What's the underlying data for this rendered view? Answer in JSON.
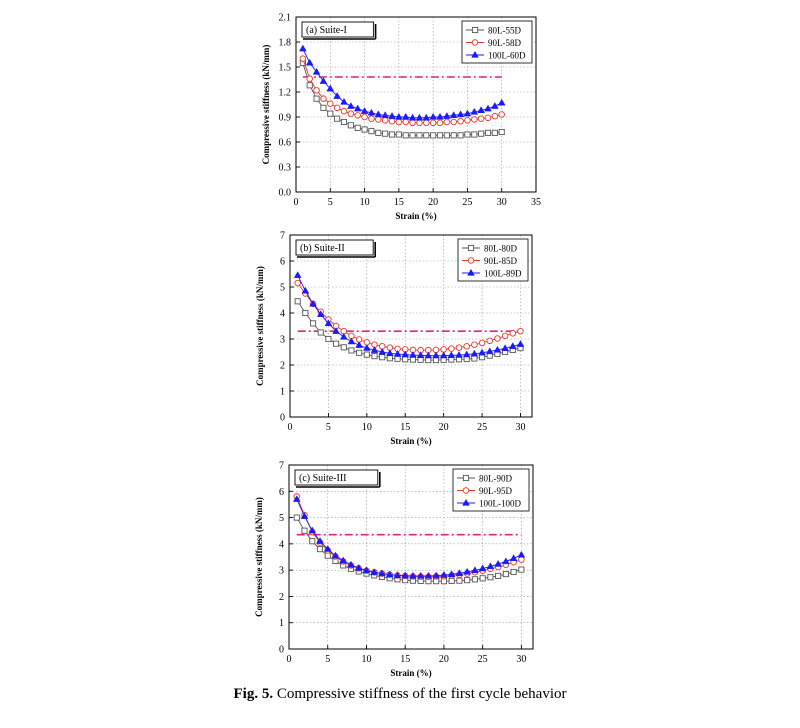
{
  "figure": {
    "caption_label": "Fig. 5.",
    "caption_text": "Compressive stiffness of the first cycle behavior"
  },
  "chart_data": [
    {
      "type": "line",
      "panel_label": "(a) Suite-I",
      "xlabel": "Strain (%)",
      "ylabel": "Compressive stiffness (kN/mm)",
      "xlim": [
        0,
        35
      ],
      "ylim": [
        0.0,
        2.1
      ],
      "xticks": [
        0,
        5,
        10,
        15,
        20,
        25,
        30,
        35
      ],
      "xtick_labels": [
        "0",
        "5",
        "10",
        "15",
        "20",
        "25",
        "30",
        "35"
      ],
      "yticks": [
        0.0,
        0.3,
        0.6,
        0.9,
        1.2,
        1.5,
        1.8,
        2.1
      ],
      "ytick_labels": [
        "0.0",
        "0.3",
        "0.6",
        "0.9",
        "1.2",
        "1.5",
        "1.8",
        "2.1"
      ],
      "grid": true,
      "legend": "top-right",
      "reference_line": {
        "y": 1.38,
        "x_range": [
          1,
          30
        ],
        "color": "#e0218a",
        "style": "dash-dot"
      },
      "x": [
        1,
        2,
        3,
        4,
        5,
        6,
        7,
        8,
        9,
        10,
        11,
        12,
        13,
        14,
        15,
        16,
        17,
        18,
        19,
        20,
        21,
        22,
        23,
        24,
        25,
        26,
        27,
        28,
        29,
        30
      ],
      "series": [
        {
          "name": "80L-55D",
          "marker": "square-open",
          "color": "#555555",
          "values": [
            1.55,
            1.28,
            1.12,
            1.01,
            0.94,
            0.88,
            0.84,
            0.8,
            0.77,
            0.75,
            0.73,
            0.71,
            0.7,
            0.69,
            0.69,
            0.68,
            0.68,
            0.68,
            0.68,
            0.68,
            0.68,
            0.68,
            0.68,
            0.68,
            0.69,
            0.69,
            0.7,
            0.71,
            0.71,
            0.72
          ]
        },
        {
          "name": "90L-58D",
          "marker": "circle-open",
          "color": "#e8392a",
          "values": [
            1.6,
            1.36,
            1.22,
            1.12,
            1.06,
            1.01,
            0.97,
            0.94,
            0.92,
            0.9,
            0.88,
            0.87,
            0.86,
            0.85,
            0.84,
            0.84,
            0.83,
            0.83,
            0.83,
            0.83,
            0.83,
            0.84,
            0.84,
            0.85,
            0.86,
            0.87,
            0.88,
            0.89,
            0.91,
            0.93
          ]
        },
        {
          "name": "100L-60D",
          "marker": "triangle-filled",
          "color": "#1a1aff",
          "values": [
            1.72,
            1.55,
            1.44,
            1.33,
            1.24,
            1.15,
            1.08,
            1.03,
            1.0,
            0.97,
            0.95,
            0.93,
            0.92,
            0.91,
            0.9,
            0.9,
            0.89,
            0.89,
            0.89,
            0.9,
            0.9,
            0.91,
            0.92,
            0.93,
            0.94,
            0.96,
            0.98,
            1.0,
            1.03,
            1.07
          ]
        }
      ]
    },
    {
      "type": "line",
      "panel_label": "(b) Suite-II",
      "xlabel": "Strain (%)",
      "ylabel": "Compressive stiffness (kN/mm)",
      "xlim": [
        0,
        31.5
      ],
      "ylim": [
        0,
        7
      ],
      "xticks": [
        0,
        5,
        10,
        15,
        20,
        25,
        30
      ],
      "xtick_labels": [
        "0",
        "5",
        "10",
        "15",
        "20",
        "25",
        "30"
      ],
      "yticks": [
        0,
        1,
        2,
        3,
        4,
        5,
        6,
        7
      ],
      "ytick_labels": [
        "0",
        "1",
        "2",
        "3",
        "4",
        "5",
        "6",
        "7"
      ],
      "grid": true,
      "legend": "top-right",
      "reference_line": {
        "y": 3.3,
        "x_range": [
          1,
          30
        ],
        "color": "#e0218a",
        "style": "dash-dot"
      },
      "x": [
        1,
        2,
        3,
        4,
        5,
        6,
        7,
        8,
        9,
        10,
        11,
        12,
        13,
        14,
        15,
        16,
        17,
        18,
        19,
        20,
        21,
        22,
        23,
        24,
        25,
        26,
        27,
        28,
        29,
        30
      ],
      "series": [
        {
          "name": "80L-80D",
          "marker": "square-open",
          "color": "#555555",
          "values": [
            4.45,
            4.0,
            3.6,
            3.25,
            3.0,
            2.82,
            2.68,
            2.56,
            2.47,
            2.4,
            2.34,
            2.3,
            2.26,
            2.24,
            2.22,
            2.21,
            2.2,
            2.19,
            2.19,
            2.2,
            2.21,
            2.22,
            2.23,
            2.25,
            2.3,
            2.36,
            2.43,
            2.5,
            2.58,
            2.65
          ]
        },
        {
          "name": "90L-85D",
          "marker": "circle-open",
          "color": "#e8392a",
          "values": [
            5.15,
            4.75,
            4.35,
            4.05,
            3.75,
            3.5,
            3.3,
            3.12,
            2.98,
            2.87,
            2.78,
            2.72,
            2.67,
            2.62,
            2.6,
            2.58,
            2.57,
            2.57,
            2.58,
            2.6,
            2.63,
            2.67,
            2.72,
            2.78,
            2.85,
            2.93,
            3.02,
            3.12,
            3.22,
            3.3
          ]
        },
        {
          "name": "100L-89D",
          "marker": "triangle-filled",
          "color": "#1a1aff",
          "values": [
            5.45,
            4.85,
            4.35,
            3.95,
            3.6,
            3.3,
            3.08,
            2.9,
            2.76,
            2.65,
            2.57,
            2.5,
            2.45,
            2.42,
            2.4,
            2.38,
            2.37,
            2.36,
            2.36,
            2.36,
            2.37,
            2.38,
            2.4,
            2.43,
            2.47,
            2.52,
            2.58,
            2.64,
            2.72,
            2.8
          ]
        }
      ]
    },
    {
      "type": "line",
      "panel_label": "(c) Suite-III",
      "xlabel": "Strain (%)",
      "ylabel": "Compressive stiffness (kN/mm)",
      "xlim": [
        0,
        31.5
      ],
      "ylim": [
        0,
        7
      ],
      "xticks": [
        0,
        5,
        10,
        15,
        20,
        25,
        30
      ],
      "xtick_labels": [
        "0",
        "5",
        "10",
        "15",
        "20",
        "25",
        "30"
      ],
      "yticks": [
        0,
        1,
        2,
        3,
        4,
        5,
        6,
        7
      ],
      "ytick_labels": [
        "0",
        "1",
        "2",
        "3",
        "4",
        "5",
        "6",
        "7"
      ],
      "grid": true,
      "legend": "top-right",
      "reference_line": {
        "y": 4.35,
        "x_range": [
          1,
          30
        ],
        "color": "#e0218a",
        "style": "dash-dot"
      },
      "x": [
        1,
        2,
        3,
        4,
        5,
        6,
        7,
        8,
        9,
        10,
        11,
        12,
        13,
        14,
        15,
        16,
        17,
        18,
        19,
        20,
        21,
        22,
        23,
        24,
        25,
        26,
        27,
        28,
        29,
        30
      ],
      "series": [
        {
          "name": "80L-90D",
          "marker": "square-open",
          "color": "#555555",
          "values": [
            5.0,
            4.5,
            4.1,
            3.8,
            3.55,
            3.35,
            3.18,
            3.05,
            2.95,
            2.87,
            2.8,
            2.74,
            2.69,
            2.65,
            2.62,
            2.6,
            2.59,
            2.58,
            2.58,
            2.58,
            2.59,
            2.6,
            2.62,
            2.65,
            2.69,
            2.73,
            2.78,
            2.85,
            2.93,
            3.02
          ]
        },
        {
          "name": "90L-95D",
          "marker": "circle-open",
          "color": "#e8392a",
          "values": [
            5.8,
            5.1,
            4.45,
            4.05,
            3.75,
            3.52,
            3.33,
            3.18,
            3.07,
            2.98,
            2.92,
            2.87,
            2.83,
            2.8,
            2.78,
            2.76,
            2.75,
            2.75,
            2.76,
            2.77,
            2.8,
            2.83,
            2.87,
            2.92,
            2.98,
            3.05,
            3.12,
            3.2,
            3.3,
            3.4
          ]
        },
        {
          "name": "100L-100D",
          "marker": "triangle-filled",
          "color": "#1a1aff",
          "values": [
            5.7,
            5.05,
            4.5,
            4.1,
            3.8,
            3.55,
            3.36,
            3.2,
            3.08,
            2.99,
            2.92,
            2.87,
            2.83,
            2.8,
            2.79,
            2.78,
            2.78,
            2.78,
            2.79,
            2.81,
            2.84,
            2.88,
            2.93,
            2.99,
            3.06,
            3.14,
            3.23,
            3.33,
            3.45,
            3.58
          ]
        }
      ]
    }
  ]
}
